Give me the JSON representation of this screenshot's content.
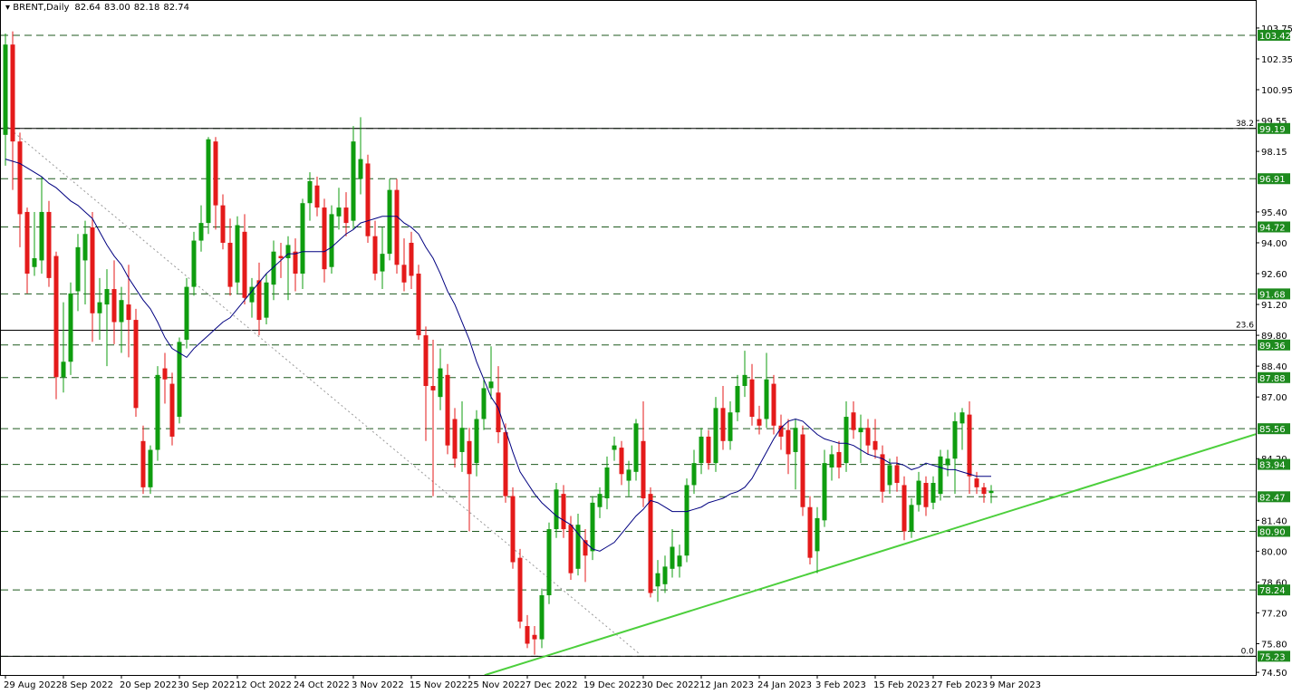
{
  "chart_data": {
    "type": "candlestick",
    "symbol": "BRENT,Daily",
    "last_bar_labels": [
      "82.64",
      "83.00",
      "82.18",
      "82.74"
    ],
    "categories": [
      "29 Aug 2022",
      null,
      null,
      null,
      null,
      null,
      null,
      null,
      "8 Sep 2022",
      null,
      null,
      null,
      null,
      null,
      null,
      null,
      "20 Sep 2022",
      null,
      null,
      null,
      null,
      null,
      null,
      null,
      "30 Sep 2022",
      null,
      null,
      null,
      null,
      null,
      null,
      null,
      "12 Oct 2022",
      null,
      null,
      null,
      null,
      null,
      null,
      null,
      "24 Oct 2022",
      null,
      null,
      null,
      null,
      null,
      null,
      null,
      "3 Nov 2022",
      null,
      null,
      null,
      null,
      null,
      null,
      null,
      "15 Nov 2022",
      null,
      null,
      null,
      null,
      null,
      null,
      null,
      "25 Nov 2022",
      null,
      null,
      null,
      null,
      null,
      null,
      null,
      "7 Dec 2022",
      null,
      null,
      null,
      null,
      null,
      null,
      null,
      "19 Dec 2022",
      null,
      null,
      null,
      null,
      null,
      null,
      null,
      "30 Dec 2022",
      null,
      null,
      null,
      null,
      null,
      null,
      null,
      "12 Jan 2023",
      null,
      null,
      null,
      null,
      null,
      null,
      null,
      "24 Jan 2023",
      null,
      null,
      null,
      null,
      null,
      null,
      null,
      "3 Feb 2023",
      null,
      null,
      null,
      null,
      null,
      null,
      null,
      "15 Feb 2023",
      null,
      null,
      null,
      null,
      null,
      null,
      null,
      "27 Feb 2023",
      null,
      null,
      null,
      null,
      null,
      null,
      null,
      "9 Mar 2023"
    ],
    "ohlc": [
      [
        98.9,
        103.5,
        97.5,
        103.0
      ],
      [
        103.0,
        103.6,
        96.4,
        98.6
      ],
      [
        98.6,
        99.0,
        93.8,
        95.3
      ],
      [
        95.4,
        95.6,
        91.7,
        92.6
      ],
      [
        92.9,
        95.4,
        92.5,
        93.3
      ],
      [
        93.2,
        97.0,
        92.6,
        95.4
      ],
      [
        95.4,
        95.9,
        92.0,
        92.4
      ],
      [
        93.4,
        93.6,
        86.9,
        87.9
      ],
      [
        87.9,
        91.3,
        87.2,
        88.6
      ],
      [
        88.6,
        92.2,
        88.0,
        91.7
      ],
      [
        91.8,
        94.4,
        90.9,
        93.8
      ],
      [
        93.2,
        95.0,
        91.2,
        94.4
      ],
      [
        94.7,
        95.4,
        89.5,
        90.8
      ],
      [
        90.8,
        92.4,
        89.6,
        91.3
      ],
      [
        91.2,
        92.8,
        88.4,
        91.9
      ],
      [
        91.9,
        93.2,
        89.4,
        90.4
      ],
      [
        90.4,
        92.0,
        89.0,
        91.4
      ],
      [
        91.2,
        93.0,
        88.8,
        90.5
      ],
      [
        90.5,
        91.0,
        86.1,
        86.5
      ],
      [
        85.0,
        85.7,
        82.6,
        82.9
      ],
      [
        82.9,
        84.8,
        82.6,
        84.6
      ],
      [
        84.6,
        88.4,
        84.1,
        88.0
      ],
      [
        88.3,
        89.0,
        86.7,
        87.8
      ],
      [
        87.6,
        88.1,
        84.8,
        85.2
      ],
      [
        86.1,
        89.7,
        85.8,
        89.5
      ],
      [
        89.6,
        92.4,
        89.2,
        92.0
      ],
      [
        92.0,
        94.5,
        91.6,
        94.1
      ],
      [
        94.1,
        95.7,
        93.6,
        94.9
      ],
      [
        94.9,
        98.8,
        94.4,
        98.7
      ],
      [
        98.6,
        98.8,
        94.6,
        95.7
      ],
      [
        95.7,
        96.2,
        93.7,
        94.0
      ],
      [
        94.0,
        95.1,
        91.6,
        92.0
      ],
      [
        92.2,
        95.2,
        91.7,
        94.8
      ],
      [
        94.5,
        95.3,
        91.2,
        91.5
      ],
      [
        91.3,
        92.4,
        90.6,
        92.0
      ],
      [
        92.3,
        93.1,
        89.8,
        90.5
      ],
      [
        90.6,
        92.6,
        90.3,
        92.2
      ],
      [
        92.1,
        94.1,
        91.4,
        93.6
      ],
      [
        93.4,
        94.0,
        92.4,
        93.3
      ],
      [
        93.3,
        94.3,
        91.4,
        93.9
      ],
      [
        93.6,
        94.2,
        91.8,
        92.6
      ],
      [
        92.6,
        96.0,
        91.9,
        95.8
      ],
      [
        95.8,
        97.2,
        95.0,
        96.8
      ],
      [
        96.6,
        97.0,
        95.2,
        95.6
      ],
      [
        95.6,
        96.0,
        92.2,
        92.8
      ],
      [
        92.9,
        95.7,
        92.6,
        95.3
      ],
      [
        95.2,
        96.5,
        94.6,
        95.6
      ],
      [
        95.6,
        96.3,
        94.3,
        94.9
      ],
      [
        95.0,
        99.3,
        94.6,
        98.6
      ],
      [
        96.9,
        99.7,
        96.2,
        97.8
      ],
      [
        97.6,
        98.0,
        94.0,
        94.3
      ],
      [
        94.3,
        95.0,
        92.3,
        92.6
      ],
      [
        92.7,
        94.7,
        91.9,
        93.5
      ],
      [
        93.5,
        96.9,
        93.2,
        96.4
      ],
      [
        96.4,
        96.9,
        92.6,
        93.0
      ],
      [
        93.0,
        94.2,
        91.8,
        92.2
      ],
      [
        94.0,
        94.5,
        91.9,
        92.5
      ],
      [
        92.6,
        93.0,
        89.6,
        89.8
      ],
      [
        89.8,
        90.2,
        85.0,
        87.5
      ],
      [
        87.5,
        89.6,
        82.5,
        87.3
      ],
      [
        87.0,
        89.2,
        86.4,
        88.3
      ],
      [
        88.0,
        88.5,
        84.4,
        84.8
      ],
      [
        86.0,
        86.5,
        83.8,
        84.2
      ],
      [
        84.5,
        86.8,
        83.6,
        85.6
      ],
      [
        85.0,
        85.6,
        80.9,
        83.5
      ],
      [
        84.0,
        86.4,
        83.4,
        86.0
      ],
      [
        86.0,
        87.8,
        85.5,
        87.4
      ],
      [
        87.4,
        89.3,
        86.9,
        87.7
      ],
      [
        87.2,
        88.4,
        84.9,
        85.4
      ],
      [
        85.4,
        85.8,
        82.2,
        82.5
      ],
      [
        82.5,
        82.9,
        79.2,
        79.5
      ],
      [
        79.7,
        80.1,
        76.5,
        76.8
      ],
      [
        76.6,
        77.1,
        75.6,
        75.8
      ],
      [
        76.2,
        76.6,
        75.3,
        76.0
      ],
      [
        76.0,
        78.3,
        75.6,
        78.0
      ],
      [
        78.0,
        81.3,
        77.6,
        81.0
      ],
      [
        81.0,
        83.1,
        80.6,
        82.8
      ],
      [
        82.6,
        83.0,
        80.6,
        81.0
      ],
      [
        81.2,
        81.6,
        78.7,
        79.0
      ],
      [
        79.2,
        81.7,
        78.9,
        81.2
      ],
      [
        80.5,
        81.0,
        78.6,
        79.8
      ],
      [
        80.0,
        82.5,
        79.6,
        82.2
      ],
      [
        82.0,
        82.9,
        81.5,
        82.6
      ],
      [
        82.4,
        84.3,
        81.9,
        83.8
      ],
      [
        84.6,
        85.2,
        84.1,
        84.8
      ],
      [
        84.7,
        85.0,
        83.0,
        83.5
      ],
      [
        83.2,
        84.1,
        82.5,
        83.7
      ],
      [
        83.6,
        86.0,
        83.2,
        85.8
      ],
      [
        85.0,
        86.8,
        82.0,
        82.4
      ],
      [
        82.6,
        82.9,
        77.9,
        78.1
      ],
      [
        78.4,
        79.6,
        77.7,
        79.0
      ],
      [
        78.5,
        79.8,
        78.1,
        79.3
      ],
      [
        79.2,
        81.0,
        78.8,
        80.2
      ],
      [
        79.3,
        80.3,
        78.8,
        79.8
      ],
      [
        79.8,
        83.3,
        79.5,
        83.0
      ],
      [
        83.0,
        84.6,
        82.6,
        84.0
      ],
      [
        84.0,
        85.6,
        83.5,
        85.2
      ],
      [
        85.2,
        85.5,
        83.7,
        84.0
      ],
      [
        84.0,
        87.0,
        83.6,
        86.5
      ],
      [
        86.5,
        87.5,
        84.6,
        85.0
      ],
      [
        85.0,
        86.8,
        84.6,
        86.3
      ],
      [
        86.3,
        88.0,
        85.9,
        87.5
      ],
      [
        87.5,
        89.1,
        87.0,
        88.0
      ],
      [
        87.8,
        88.5,
        85.7,
        86.1
      ],
      [
        86.0,
        86.6,
        85.3,
        85.7
      ],
      [
        86.0,
        89.0,
        85.6,
        87.8
      ],
      [
        87.6,
        88.0,
        85.3,
        85.7
      ],
      [
        85.7,
        86.2,
        84.6,
        85.2
      ],
      [
        85.5,
        86.0,
        83.5,
        84.4
      ],
      [
        84.5,
        86.0,
        82.8,
        85.6
      ],
      [
        85.3,
        85.7,
        81.6,
        82.0
      ],
      [
        82.0,
        82.5,
        79.4,
        79.7
      ],
      [
        80.0,
        82.0,
        79.0,
        81.5
      ],
      [
        81.4,
        84.6,
        81.1,
        84.0
      ],
      [
        83.8,
        84.8,
        83.2,
        84.4
      ],
      [
        84.5,
        85.0,
        83.3,
        83.8
      ],
      [
        84.0,
        86.8,
        83.6,
        86.1
      ],
      [
        86.3,
        86.8,
        85.1,
        85.5
      ],
      [
        85.4,
        86.2,
        84.0,
        85.6
      ],
      [
        85.6,
        86.0,
        84.4,
        84.8
      ],
      [
        85.0,
        86.0,
        84.2,
        84.6
      ],
      [
        84.4,
        84.8,
        82.2,
        82.7
      ],
      [
        83.0,
        84.2,
        82.6,
        83.9
      ],
      [
        83.9,
        84.3,
        82.7,
        83.1
      ],
      [
        83.0,
        83.4,
        80.5,
        80.9
      ],
      [
        80.9,
        82.4,
        80.6,
        82.1
      ],
      [
        82.1,
        83.6,
        81.8,
        83.2
      ],
      [
        83.1,
        83.4,
        81.6,
        82.0
      ],
      [
        82.2,
        83.4,
        81.9,
        83.1
      ],
      [
        82.6,
        84.6,
        82.3,
        84.3
      ],
      [
        83.9,
        84.6,
        83.4,
        84.2
      ],
      [
        84.2,
        86.3,
        82.6,
        85.9
      ],
      [
        85.8,
        86.5,
        84.6,
        86.3
      ],
      [
        86.2,
        86.8,
        82.6,
        83.4
      ],
      [
        83.3,
        83.6,
        82.6,
        82.9
      ],
      [
        82.9,
        83.1,
        82.2,
        82.6
      ],
      [
        82.64,
        83.0,
        82.18,
        82.74
      ]
    ],
    "up_color": "#0f9d0f",
    "down_color": "#e41a1a",
    "ma": {
      "color": "#000080",
      "values": [
        97.8,
        97.7,
        97.6,
        97.4,
        97.2,
        97.0,
        96.7,
        96.5,
        96.2,
        95.9,
        95.7,
        95.4,
        95.1,
        94.5,
        93.9,
        93.4,
        93.0,
        92.4,
        91.9,
        91.4,
        91.0,
        90.4,
        89.7,
        89.2,
        89.0,
        88.8,
        89.2,
        89.5,
        89.8,
        90.1,
        90.4,
        90.6,
        91.0,
        91.4,
        91.8,
        92.2,
        92.6,
        92.9,
        93.2,
        93.5,
        93.5,
        93.6,
        93.6,
        93.6,
        93.6,
        93.8,
        94.1,
        94.4,
        94.6,
        94.9,
        95.0,
        95.1,
        95.2,
        95.2,
        95.2,
        94.9,
        94.7,
        94.4,
        93.8,
        93.3,
        92.6,
        91.8,
        91.2,
        90.4,
        89.6,
        88.6,
        87.8,
        87.0,
        86.5,
        85.5,
        84.5,
        83.6,
        83.1,
        82.6,
        82.2,
        81.9,
        81.6,
        81.4,
        81.2,
        80.8,
        80.4,
        80.1,
        80.0,
        80.2,
        80.4,
        80.8,
        81.2,
        81.6,
        81.9,
        82.3,
        82.2,
        82.0,
        81.8,
        81.8,
        81.8,
        81.9,
        82.0,
        82.2,
        82.3,
        82.4,
        82.6,
        82.7,
        82.9,
        83.3,
        83.9,
        84.5,
        85.1,
        85.6,
        85.9,
        86.0,
        85.9,
        85.6,
        85.3,
        85.1,
        85.0,
        84.9,
        84.9,
        84.8,
        84.6,
        84.4,
        84.3,
        84.2,
        84.0,
        84.0,
        83.9,
        83.7,
        83.8,
        84.0,
        83.9,
        83.8,
        83.7,
        83.7,
        83.6,
        83.5,
        83.4,
        83.4,
        83.4
      ]
    },
    "ylim": [
      74.38,
      104.94
    ],
    "yticks": [
      103.75,
      102.35,
      100.95,
      99.55,
      98.15,
      {
        "value": 95.4,
        "label": "95.40"
      },
      {
        "value": 94,
        "label": "94.00"
      },
      {
        "value": 92.6,
        "label": "92.60"
      },
      {
        "value": 91.2,
        "label": "91.20"
      },
      {
        "value": 89.8,
        "label": "89.80"
      },
      {
        "value": 88.4,
        "label": "88.40"
      },
      {
        "value": 87,
        "label": "87.00"
      },
      {
        "value": 84.2,
        "label": "84.20"
      },
      {
        "value": 81.4,
        "label": "81.40"
      },
      {
        "value": 80,
        "label": "80.00"
      },
      {
        "value": 78.6,
        "label": "78.60"
      },
      {
        "value": 77.2,
        "label": "77.20"
      },
      {
        "value": 75.8,
        "label": "75.80"
      },
      {
        "value": 74.5,
        "label": "74.50"
      }
    ],
    "levels": [
      103.42,
      99.19,
      96.91,
      94.72,
      91.68,
      89.36,
      87.88,
      85.56,
      83.94,
      82.47,
      {
        "value": 80.9,
        "label": "80.90"
      },
      78.24,
      75.23
    ],
    "level_color": "#1f5a1f",
    "level_box_color": "#1e8a1e",
    "fib": [
      {
        "ratio": "38.2",
        "price": 99.19
      },
      {
        "ratio": "23.6",
        "price": 90.03
      },
      {
        "ratio": "0.0",
        "price": 75.23
      }
    ],
    "trendlines": [
      {
        "color": "#4ccf3c",
        "style": "solid",
        "x": [
          66.1,
          172.5
        ],
        "y": [
          74.37,
          85.31
        ]
      },
      {
        "color": "#999999",
        "style": "dotted",
        "x": [
          0.25,
          87.5
        ],
        "y": [
          99.27,
          75.33
        ]
      }
    ],
    "last_price_color": "#b0b0b0"
  }
}
